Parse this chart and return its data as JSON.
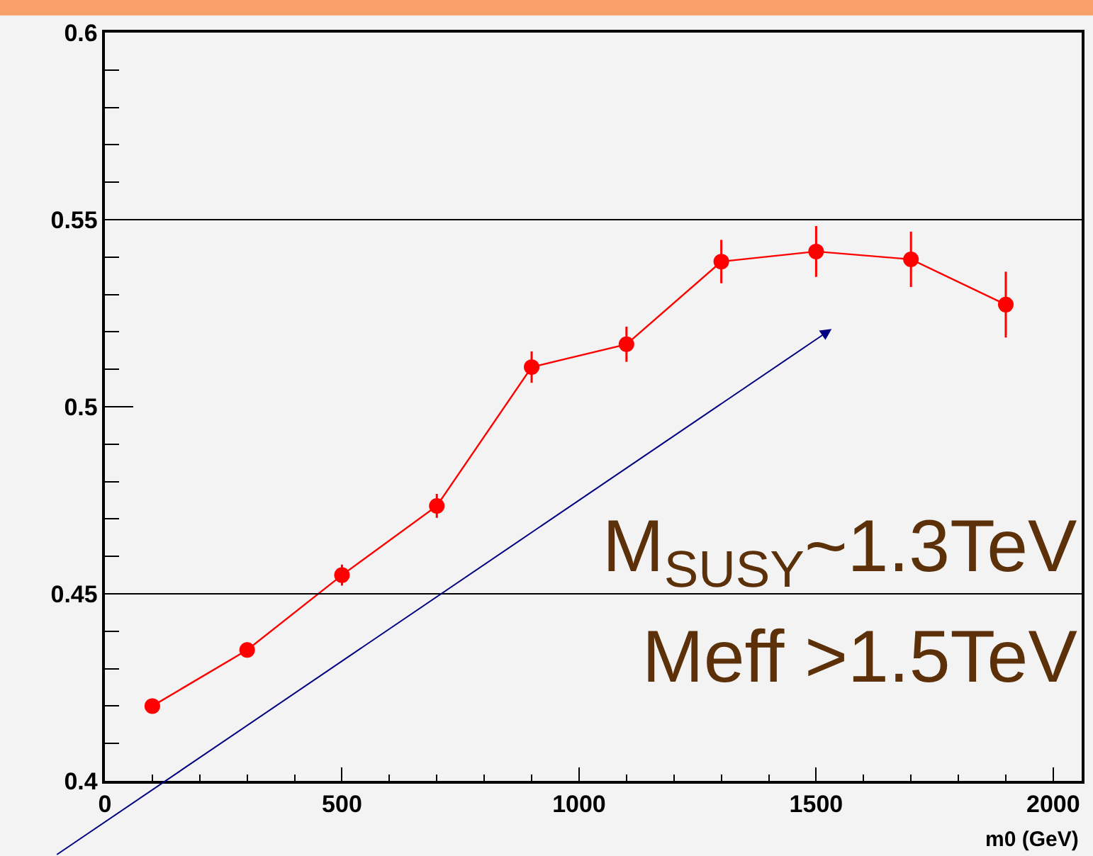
{
  "chart_data": {
    "type": "line",
    "xlabel": "m0 (GeV)",
    "x": [
      100,
      300,
      500,
      700,
      900,
      1100,
      1300,
      1500,
      1700,
      1900
    ],
    "series": [
      {
        "color": "#ff0000",
        "values": [
          0.42,
          0.435,
          0.455,
          0.4735,
          0.5106,
          0.5167,
          0.5388,
          0.5415,
          0.5394,
          0.5273
        ],
        "errors": [
          0.002,
          0.002,
          0.0028,
          0.0032,
          0.0042,
          0.0047,
          0.0058,
          0.0068,
          0.0074,
          0.0088
        ]
      }
    ],
    "xlim": [
      0,
      2060
    ],
    "xticks": [
      0,
      500,
      1000,
      1500,
      2000
    ],
    "ylim": [
      0.4,
      0.6
    ],
    "yticks": [
      0.4,
      0.45,
      0.5,
      0.55,
      0.6
    ],
    "ref_lines": [
      {
        "axis": "y",
        "value": 0.55,
        "color": "#000000"
      },
      {
        "axis": "y",
        "value": 0.45,
        "color": "#000000"
      }
    ],
    "annotations": [
      "M$_{SUSY}$~1.3TeV",
      "Meff >1.5TeV"
    ],
    "marker": "circle",
    "line_style": "solid",
    "grid": false
  }
}
